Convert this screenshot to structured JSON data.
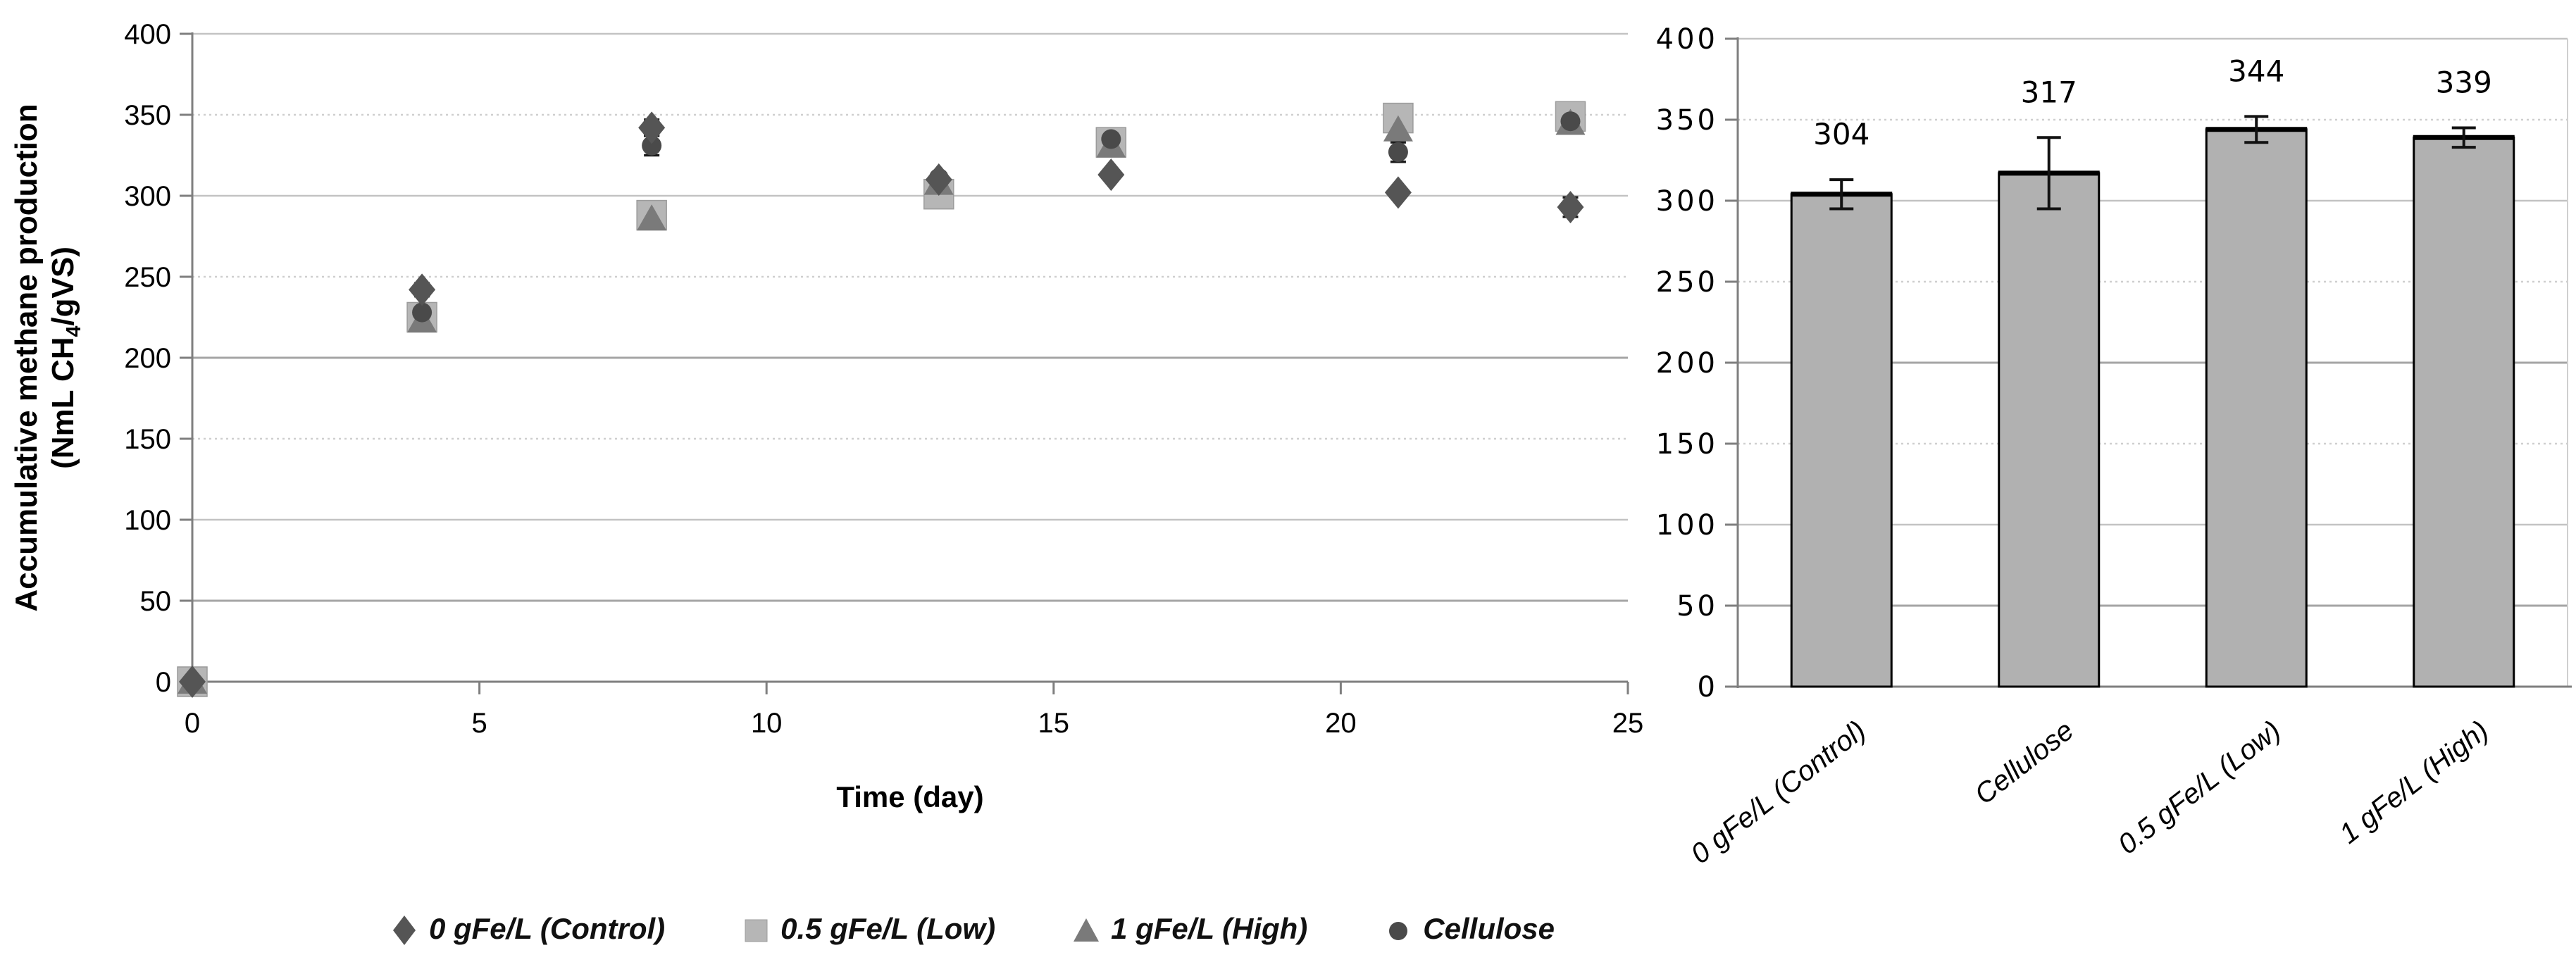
{
  "chart_data": [
    {
      "type": "scatter",
      "panel": "left",
      "ylabel_line1": "Accumulative methane production",
      "ylabel_line2_pre": "(NmL CH",
      "ylabel_line2_sub": "4",
      "ylabel_line2_post": "/gVS)",
      "xlabel": "Time (day)",
      "xlim": [
        0,
        25
      ],
      "ylim": [
        0,
        400
      ],
      "xticks": [
        0,
        5,
        10,
        15,
        20,
        25
      ],
      "yticks": [
        0,
        50,
        100,
        150,
        200,
        250,
        300,
        350,
        400
      ],
      "grid": true,
      "legend_position": "bottom",
      "x": [
        0,
        4,
        8,
        13,
        16,
        21,
        24
      ],
      "series": [
        {
          "name": "0.5 gFe/L (Low)",
          "marker": "square",
          "color": "#b6b6b6",
          "values": [
            0,
            225,
            288,
            301,
            333,
            348,
            349
          ],
          "err": [
            0,
            4,
            0,
            5,
            3,
            4,
            4
          ]
        },
        {
          "name": "1 gFe/L (High)",
          "marker": "triangle",
          "color": "#7a7a7a",
          "values": [
            0,
            223,
            286,
            308,
            331,
            341,
            345
          ],
          "err": [
            0,
            0,
            0,
            0,
            0,
            0,
            3
          ]
        },
        {
          "name": "Cellulose",
          "marker": "circle",
          "color": "#4a4a4a",
          "values": [
            0,
            228,
            331,
            311,
            335,
            327,
            346
          ],
          "err": [
            0,
            4,
            6,
            0,
            0,
            6,
            0
          ]
        },
        {
          "name": "0 gFe/L (Control)",
          "marker": "diamond",
          "color": "#555555",
          "values": [
            0,
            242,
            342,
            310,
            313,
            302,
            293
          ],
          "err": [
            0,
            4,
            5,
            0,
            0,
            0,
            6
          ]
        }
      ],
      "legend": [
        {
          "label": "0 gFe/L (Control)",
          "marker": "diamond",
          "color": "#555555"
        },
        {
          "label": "0.5 gFe/L (Low)",
          "marker": "square",
          "color": "#b6b6b6"
        },
        {
          "label": "1 gFe/L (High)",
          "marker": "triangle",
          "color": "#7a7a7a"
        },
        {
          "label": "Cellulose",
          "marker": "circle",
          "color": "#4a4a4a"
        }
      ]
    },
    {
      "type": "bar",
      "panel": "right",
      "categories": [
        "0 gFe/L (Control)",
        "Cellulose",
        "0.5 gFe/L (Low)",
        "1 gFe/L (High)"
      ],
      "values": [
        304,
        317,
        344,
        339
      ],
      "errors": [
        9,
        22,
        8,
        6
      ],
      "data_labels": [
        "304",
        "317",
        "344",
        "339"
      ],
      "ylim": [
        0,
        400
      ],
      "yticks": [
        0,
        50,
        100,
        150,
        200,
        250,
        300,
        350,
        400
      ],
      "grid": true,
      "bar_color": "#b1b1b1",
      "bar_border_color": "#000000",
      "error_bar_color": "#111111"
    }
  ],
  "colors": {
    "axis": "#7f7f7f",
    "gridline_major": "#c3c3c3",
    "gridline_dark": "#a5a5a5",
    "gridline_light": "#cfcfcf",
    "text": "#000000"
  }
}
